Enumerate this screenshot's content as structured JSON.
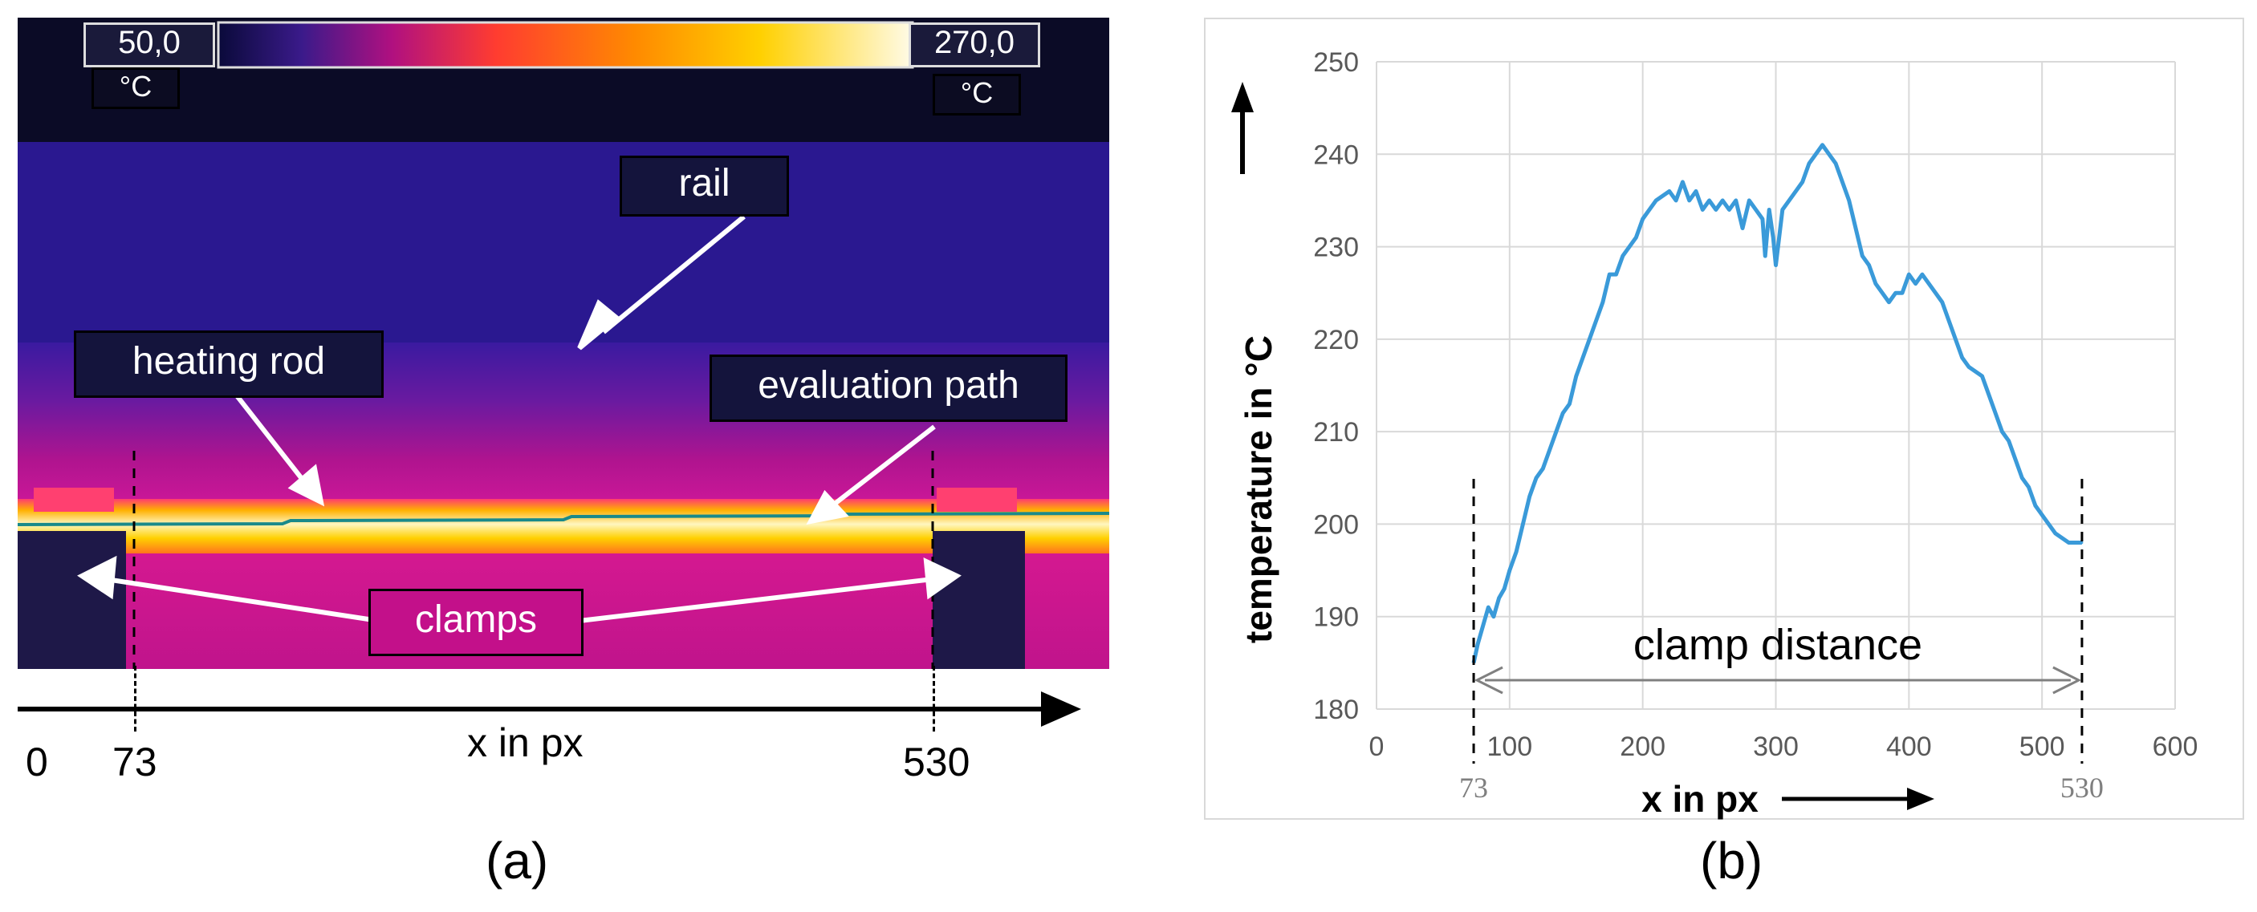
{
  "panel_a": {
    "scale_min": "50,0",
    "scale_max": "270,0",
    "unit_left": "°C",
    "unit_right": "°C",
    "labels": {
      "rail": "rail",
      "heating_rod": "heating rod",
      "evaluation_path": "evaluation path",
      "clamps": "clamps"
    },
    "axis_label": "x in px",
    "ticks": [
      "0",
      "73",
      "530"
    ],
    "caption": "(a)",
    "colors": {
      "rail": "#3a1a9a",
      "rod_core": "#fff2b0",
      "rod_glow": "#ffb000",
      "body": "#c8169a",
      "evaluation_path_line": "#1a8a8a"
    }
  },
  "panel_b": {
    "caption": "(b)",
    "annotation": "clamp distance",
    "marker_left": "73",
    "marker_right": "530",
    "line_color": "#3a9ad9"
  },
  "chart_data": {
    "type": "line",
    "title": "",
    "xlabel": "x in px",
    "ylabel": "temperature in °C",
    "xlim": [
      0,
      600
    ],
    "ylim": [
      180,
      250
    ],
    "xticks": [
      0,
      100,
      200,
      300,
      400,
      500,
      600
    ],
    "yticks": [
      180,
      190,
      200,
      210,
      220,
      230,
      240,
      250
    ],
    "grid": true,
    "legend": "none",
    "series": [
      {
        "values_x": [
          73,
          76,
          80,
          84,
          88,
          92,
          96,
          100,
          105,
          110,
          115,
          120,
          125,
          130,
          135,
          140,
          145,
          150,
          155,
          160,
          165,
          170,
          175,
          180,
          185,
          190,
          195,
          200,
          205,
          210,
          215,
          220,
          225,
          230,
          235,
          240,
          245,
          250,
          255,
          260,
          265,
          270,
          275,
          280,
          285,
          290,
          292,
          295,
          298,
          300,
          305,
          310,
          315,
          320,
          325,
          330,
          335,
          340,
          345,
          350,
          355,
          360,
          365,
          370,
          375,
          380,
          385,
          390,
          395,
          400,
          405,
          410,
          415,
          420,
          425,
          430,
          435,
          440,
          445,
          450,
          455,
          460,
          465,
          470,
          475,
          480,
          485,
          490,
          495,
          500,
          505,
          510,
          515,
          520,
          525,
          530
        ],
        "values_y": [
          185,
          187,
          189,
          191,
          190,
          192,
          193,
          195,
          197,
          200,
          203,
          205,
          206,
          208,
          210,
          212,
          213,
          216,
          218,
          220,
          222,
          224,
          227,
          227,
          229,
          230,
          231,
          233,
          234,
          235,
          235.5,
          236,
          235,
          237,
          235,
          236,
          234,
          235,
          234,
          235,
          234,
          235,
          232,
          235,
          234,
          233,
          229,
          234,
          231,
          228,
          234,
          235,
          236,
          237,
          239,
          240,
          241,
          240,
          239,
          237,
          235,
          232,
          229,
          228,
          226,
          225,
          224,
          225,
          225,
          227,
          226,
          227,
          226,
          225,
          224,
          222,
          220,
          218,
          217,
          216.5,
          216,
          214,
          212,
          210,
          209,
          207,
          205,
          204,
          202,
          201,
          200,
          199,
          198.5,
          198,
          198,
          198
        ]
      }
    ]
  }
}
